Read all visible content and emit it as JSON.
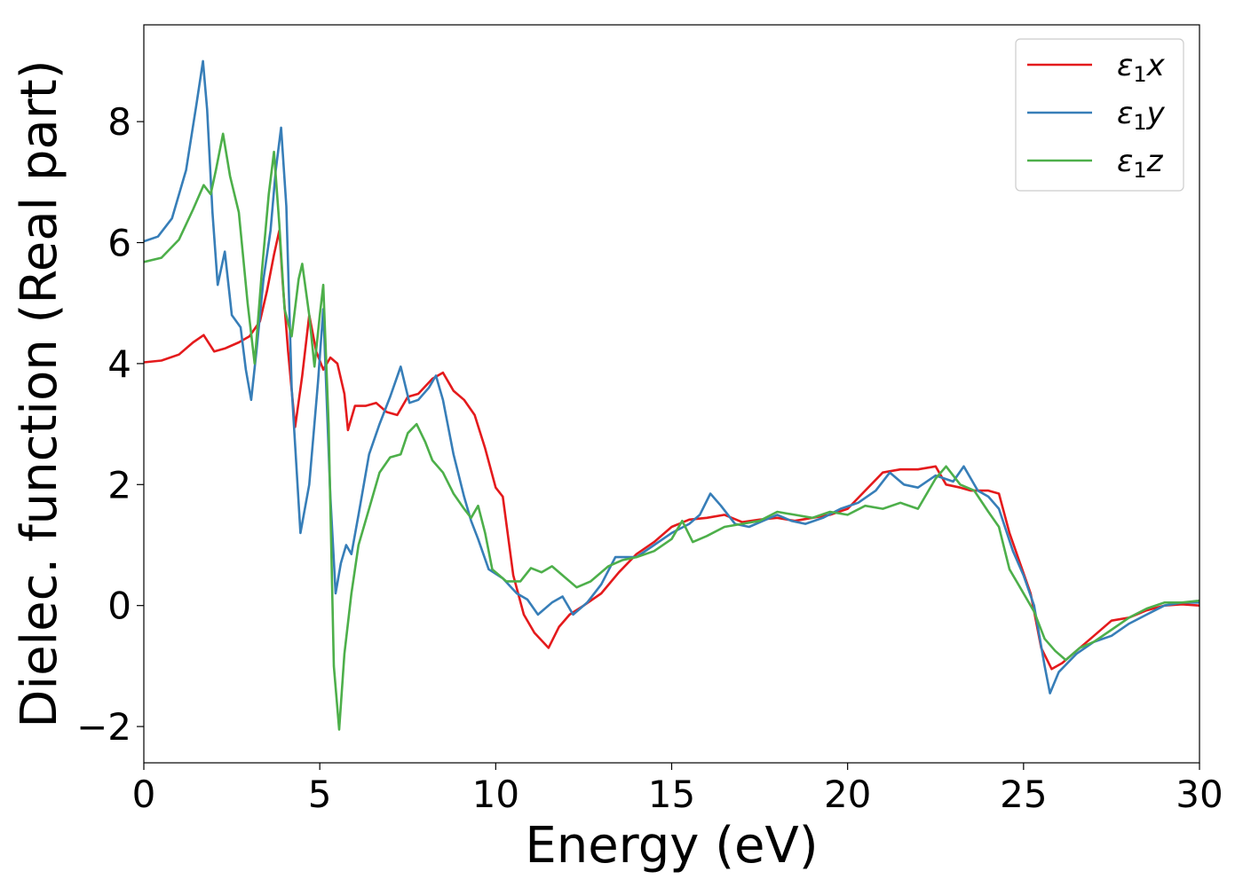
{
  "chart_data": {
    "type": "line",
    "title": "",
    "xlabel": "Energy (eV)",
    "ylabel": "Dielec. function (Real part)",
    "xlim": [
      0,
      30
    ],
    "ylim": [
      -2.6,
      9.6
    ],
    "xticks": [
      0,
      5,
      10,
      15,
      20,
      25,
      30
    ],
    "xtick_labels": [
      "0",
      "5",
      "10",
      "15",
      "20",
      "25",
      "30"
    ],
    "yticks": [
      -2,
      0,
      2,
      4,
      6,
      8
    ],
    "ytick_labels": [
      "−2",
      "0",
      "2",
      "4",
      "6",
      "8"
    ],
    "grid": false,
    "legend_position": "top-right",
    "series": [
      {
        "name": "ε1x",
        "legend": {
          "base": "ε",
          "sub": "1",
          "var": "x"
        },
        "color": "#e41a1c",
        "points": [
          [
            0,
            4.02
          ],
          [
            0.5,
            4.05
          ],
          [
            1.0,
            4.15
          ],
          [
            1.4,
            4.35
          ],
          [
            1.7,
            4.47
          ],
          [
            2.0,
            4.2
          ],
          [
            2.3,
            4.25
          ],
          [
            2.7,
            4.35
          ],
          [
            3.0,
            4.45
          ],
          [
            3.3,
            4.7
          ],
          [
            3.5,
            5.2
          ],
          [
            3.7,
            5.8
          ],
          [
            3.85,
            6.2
          ],
          [
            3.95,
            5.3
          ],
          [
            4.1,
            4.2
          ],
          [
            4.3,
            2.95
          ],
          [
            4.5,
            3.8
          ],
          [
            4.7,
            4.8
          ],
          [
            4.9,
            4.2
          ],
          [
            5.1,
            3.9
          ],
          [
            5.3,
            4.1
          ],
          [
            5.5,
            4.0
          ],
          [
            5.7,
            3.5
          ],
          [
            5.8,
            2.9
          ],
          [
            6.0,
            3.3
          ],
          [
            6.3,
            3.3
          ],
          [
            6.6,
            3.35
          ],
          [
            6.9,
            3.2
          ],
          [
            7.2,
            3.15
          ],
          [
            7.5,
            3.45
          ],
          [
            7.8,
            3.5
          ],
          [
            8.2,
            3.75
          ],
          [
            8.5,
            3.85
          ],
          [
            8.8,
            3.55
          ],
          [
            9.1,
            3.4
          ],
          [
            9.4,
            3.15
          ],
          [
            9.7,
            2.6
          ],
          [
            10.0,
            1.95
          ],
          [
            10.2,
            1.8
          ],
          [
            10.5,
            0.5
          ],
          [
            10.8,
            -0.15
          ],
          [
            11.1,
            -0.45
          ],
          [
            11.5,
            -0.7
          ],
          [
            11.8,
            -0.35
          ],
          [
            12.1,
            -0.15
          ],
          [
            12.5,
            0.0
          ],
          [
            13.0,
            0.2
          ],
          [
            13.5,
            0.55
          ],
          [
            14.0,
            0.85
          ],
          [
            14.5,
            1.05
          ],
          [
            15.0,
            1.3
          ],
          [
            15.5,
            1.42
          ],
          [
            16.0,
            1.45
          ],
          [
            16.5,
            1.5
          ],
          [
            17.0,
            1.38
          ],
          [
            17.5,
            1.42
          ],
          [
            18.0,
            1.45
          ],
          [
            18.5,
            1.4
          ],
          [
            19.0,
            1.45
          ],
          [
            19.5,
            1.5
          ],
          [
            20.0,
            1.6
          ],
          [
            20.5,
            1.9
          ],
          [
            21.0,
            2.2
          ],
          [
            21.5,
            2.25
          ],
          [
            22.0,
            2.25
          ],
          [
            22.5,
            2.3
          ],
          [
            22.8,
            2.0
          ],
          [
            23.2,
            1.95
          ],
          [
            23.5,
            1.9
          ],
          [
            24.0,
            1.9
          ],
          [
            24.3,
            1.85
          ],
          [
            24.6,
            1.2
          ],
          [
            24.9,
            0.7
          ],
          [
            25.2,
            0.2
          ],
          [
            25.5,
            -0.7
          ],
          [
            25.8,
            -1.05
          ],
          [
            26.1,
            -0.95
          ],
          [
            26.5,
            -0.75
          ],
          [
            27.0,
            -0.5
          ],
          [
            27.5,
            -0.25
          ],
          [
            28.0,
            -0.2
          ],
          [
            28.5,
            -0.08
          ],
          [
            29.0,
            0.0
          ],
          [
            29.5,
            0.02
          ],
          [
            30.0,
            0.0
          ]
        ]
      },
      {
        "name": "ε1y",
        "legend": {
          "base": "ε",
          "sub": "1",
          "var": "y"
        },
        "color": "#377eb8",
        "points": [
          [
            0,
            6.02
          ],
          [
            0.4,
            6.1
          ],
          [
            0.8,
            6.4
          ],
          [
            1.2,
            7.2
          ],
          [
            1.5,
            8.3
          ],
          [
            1.68,
            9.0
          ],
          [
            1.8,
            8.2
          ],
          [
            1.95,
            6.5
          ],
          [
            2.1,
            5.3
          ],
          [
            2.3,
            5.85
          ],
          [
            2.5,
            4.8
          ],
          [
            2.75,
            4.6
          ],
          [
            2.9,
            3.9
          ],
          [
            3.05,
            3.4
          ],
          [
            3.2,
            4.2
          ],
          [
            3.4,
            5.4
          ],
          [
            3.6,
            6.2
          ],
          [
            3.75,
            7.2
          ],
          [
            3.9,
            7.9
          ],
          [
            4.05,
            6.6
          ],
          [
            4.2,
            3.6
          ],
          [
            4.45,
            1.2
          ],
          [
            4.7,
            2.0
          ],
          [
            4.95,
            3.7
          ],
          [
            5.1,
            4.9
          ],
          [
            5.3,
            1.8
          ],
          [
            5.45,
            0.2
          ],
          [
            5.6,
            0.7
          ],
          [
            5.75,
            1.0
          ],
          [
            5.9,
            0.85
          ],
          [
            6.1,
            1.5
          ],
          [
            6.4,
            2.5
          ],
          [
            6.7,
            3.0
          ],
          [
            7.0,
            3.45
          ],
          [
            7.3,
            3.95
          ],
          [
            7.55,
            3.35
          ],
          [
            7.8,
            3.4
          ],
          [
            8.1,
            3.6
          ],
          [
            8.3,
            3.8
          ],
          [
            8.5,
            3.4
          ],
          [
            8.8,
            2.5
          ],
          [
            9.1,
            1.8
          ],
          [
            9.3,
            1.4
          ],
          [
            9.5,
            1.1
          ],
          [
            9.8,
            0.6
          ],
          [
            10.2,
            0.45
          ],
          [
            10.6,
            0.2
          ],
          [
            10.9,
            0.1
          ],
          [
            11.2,
            -0.15
          ],
          [
            11.6,
            0.05
          ],
          [
            11.9,
            0.15
          ],
          [
            12.2,
            -0.15
          ],
          [
            12.6,
            0.05
          ],
          [
            13.0,
            0.35
          ],
          [
            13.4,
            0.8
          ],
          [
            14.0,
            0.8
          ],
          [
            14.5,
            1.0
          ],
          [
            15.0,
            1.2
          ],
          [
            15.5,
            1.35
          ],
          [
            15.8,
            1.5
          ],
          [
            16.1,
            1.85
          ],
          [
            16.4,
            1.65
          ],
          [
            16.8,
            1.35
          ],
          [
            17.2,
            1.3
          ],
          [
            17.6,
            1.4
          ],
          [
            18.0,
            1.5
          ],
          [
            18.4,
            1.4
          ],
          [
            18.8,
            1.35
          ],
          [
            19.3,
            1.45
          ],
          [
            19.8,
            1.6
          ],
          [
            20.3,
            1.7
          ],
          [
            20.8,
            1.9
          ],
          [
            21.2,
            2.2
          ],
          [
            21.6,
            2.0
          ],
          [
            22.0,
            1.95
          ],
          [
            22.5,
            2.15
          ],
          [
            23.0,
            2.05
          ],
          [
            23.3,
            2.3
          ],
          [
            23.7,
            1.9
          ],
          [
            24.0,
            1.8
          ],
          [
            24.3,
            1.6
          ],
          [
            24.7,
            0.9
          ],
          [
            25.0,
            0.5
          ],
          [
            25.3,
            0.0
          ],
          [
            25.6,
            -1.0
          ],
          [
            25.75,
            -1.45
          ],
          [
            26.0,
            -1.1
          ],
          [
            26.5,
            -0.8
          ],
          [
            27.0,
            -0.6
          ],
          [
            27.5,
            -0.5
          ],
          [
            28.0,
            -0.3
          ],
          [
            28.5,
            -0.15
          ],
          [
            29.0,
            0.0
          ],
          [
            29.5,
            0.05
          ],
          [
            30.0,
            0.05
          ]
        ]
      },
      {
        "name": "ε1z",
        "legend": {
          "base": "ε",
          "sub": "1",
          "var": "z"
        },
        "color": "#4daf4a",
        "points": [
          [
            0,
            5.68
          ],
          [
            0.5,
            5.75
          ],
          [
            1.0,
            6.05
          ],
          [
            1.4,
            6.55
          ],
          [
            1.7,
            6.95
          ],
          [
            1.9,
            6.8
          ],
          [
            2.05,
            7.2
          ],
          [
            2.25,
            7.8
          ],
          [
            2.45,
            7.1
          ],
          [
            2.7,
            6.5
          ],
          [
            2.95,
            5.0
          ],
          [
            3.15,
            4.0
          ],
          [
            3.35,
            5.5
          ],
          [
            3.55,
            6.8
          ],
          [
            3.7,
            7.5
          ],
          [
            3.85,
            6.3
          ],
          [
            4.0,
            4.9
          ],
          [
            4.2,
            4.45
          ],
          [
            4.4,
            5.4
          ],
          [
            4.5,
            5.65
          ],
          [
            4.7,
            4.8
          ],
          [
            4.85,
            3.95
          ],
          [
            5.0,
            4.8
          ],
          [
            5.1,
            5.3
          ],
          [
            5.25,
            3.0
          ],
          [
            5.4,
            -1.0
          ],
          [
            5.55,
            -2.05
          ],
          [
            5.7,
            -0.8
          ],
          [
            5.9,
            0.2
          ],
          [
            6.1,
            1.0
          ],
          [
            6.4,
            1.6
          ],
          [
            6.7,
            2.2
          ],
          [
            7.0,
            2.45
          ],
          [
            7.3,
            2.5
          ],
          [
            7.5,
            2.85
          ],
          [
            7.75,
            3.0
          ],
          [
            8.0,
            2.7
          ],
          [
            8.2,
            2.4
          ],
          [
            8.5,
            2.2
          ],
          [
            8.8,
            1.85
          ],
          [
            9.1,
            1.6
          ],
          [
            9.3,
            1.45
          ],
          [
            9.5,
            1.65
          ],
          [
            9.7,
            1.2
          ],
          [
            9.9,
            0.6
          ],
          [
            10.3,
            0.4
          ],
          [
            10.7,
            0.4
          ],
          [
            11.0,
            0.62
          ],
          [
            11.3,
            0.55
          ],
          [
            11.6,
            0.65
          ],
          [
            12.0,
            0.45
          ],
          [
            12.3,
            0.3
          ],
          [
            12.7,
            0.4
          ],
          [
            13.2,
            0.65
          ],
          [
            13.6,
            0.75
          ],
          [
            14.0,
            0.8
          ],
          [
            14.5,
            0.9
          ],
          [
            15.0,
            1.1
          ],
          [
            15.3,
            1.4
          ],
          [
            15.6,
            1.05
          ],
          [
            16.0,
            1.15
          ],
          [
            16.5,
            1.3
          ],
          [
            17.0,
            1.35
          ],
          [
            17.5,
            1.4
          ],
          [
            18.0,
            1.55
          ],
          [
            18.5,
            1.5
          ],
          [
            19.0,
            1.45
          ],
          [
            19.5,
            1.55
          ],
          [
            20.0,
            1.5
          ],
          [
            20.5,
            1.65
          ],
          [
            21.0,
            1.6
          ],
          [
            21.5,
            1.7
          ],
          [
            22.0,
            1.6
          ],
          [
            22.5,
            2.1
          ],
          [
            22.8,
            2.3
          ],
          [
            23.2,
            2.0
          ],
          [
            23.6,
            1.9
          ],
          [
            24.0,
            1.55
          ],
          [
            24.3,
            1.3
          ],
          [
            24.6,
            0.6
          ],
          [
            24.9,
            0.3
          ],
          [
            25.3,
            -0.1
          ],
          [
            25.6,
            -0.55
          ],
          [
            25.9,
            -0.75
          ],
          [
            26.2,
            -0.9
          ],
          [
            26.6,
            -0.7
          ],
          [
            27.0,
            -0.6
          ],
          [
            27.5,
            -0.4
          ],
          [
            28.0,
            -0.2
          ],
          [
            28.5,
            -0.05
          ],
          [
            29.0,
            0.05
          ],
          [
            29.5,
            0.05
          ],
          [
            30.0,
            0.08
          ]
        ]
      }
    ]
  }
}
